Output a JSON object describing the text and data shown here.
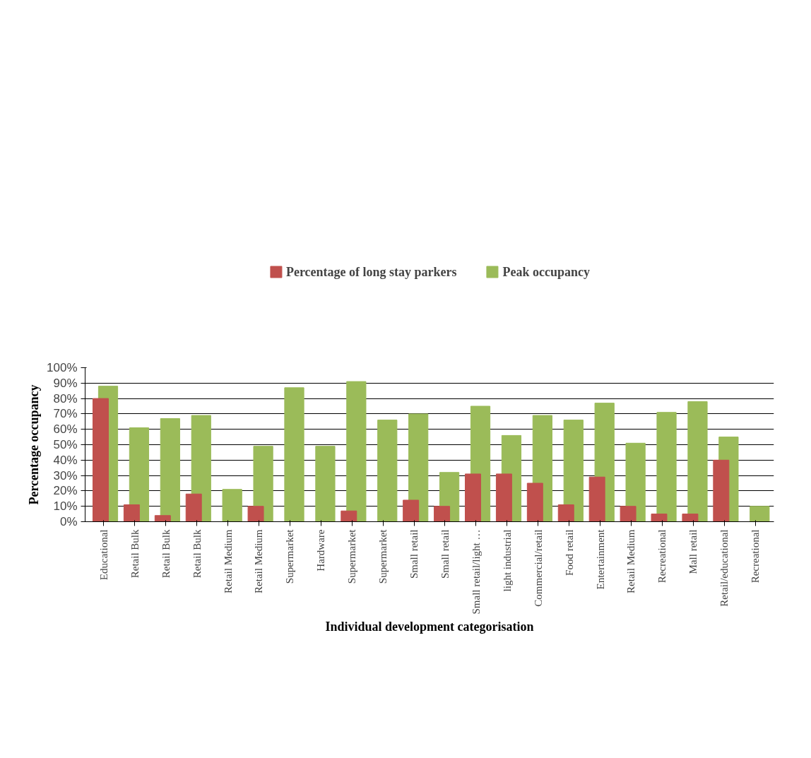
{
  "chart_data": {
    "type": "bar",
    "xlabel": "Individual development categorisation",
    "ylabel": "Percentage occupancy",
    "categories": [
      "Educational",
      "Retail Bulk",
      "Retail Bulk",
      "Retail Bulk",
      "Retail Medium",
      "Retail Medium",
      "Supermarket",
      "Hardware",
      "Supermarket",
      "Supermarket",
      "Small retail",
      "Small retail",
      "Small retail/light …",
      "light industrial",
      "Commercial/retail",
      "Food retail",
      "Entertainment",
      "Retail Medium",
      "Recreational",
      "Mall retail",
      "Retail/educational",
      "Recreational"
    ],
    "series": [
      {
        "name": "Peak occupancy",
        "color": "#9bbb59",
        "values": [
          88,
          61,
          67,
          69,
          21,
          49,
          87,
          49,
          91,
          66,
          70,
          32,
          75,
          56,
          69,
          66,
          77,
          51,
          71,
          78,
          55,
          10
        ]
      },
      {
        "name": "Percentage of long stay parkers",
        "color": "#c0504d",
        "values": [
          80,
          11,
          4,
          18,
          0,
          10,
          0,
          0,
          7,
          0,
          14,
          10,
          31,
          31,
          25,
          11,
          29,
          10,
          5,
          5,
          40,
          0
        ]
      }
    ],
    "ylim": [
      0,
      100
    ],
    "yticks": [
      {
        "value": 0,
        "label": "0%"
      },
      {
        "value": 10,
        "label": "10%"
      },
      {
        "value": 20,
        "label": "20%"
      },
      {
        "value": 30,
        "label": "30%"
      },
      {
        "value": 40,
        "label": "40%"
      },
      {
        "value": 50,
        "label": "50%"
      },
      {
        "value": 60,
        "label": "60%"
      },
      {
        "value": 70,
        "label": "70%"
      },
      {
        "value": 80,
        "label": "80%"
      },
      {
        "value": 90,
        "label": "90%"
      },
      {
        "value": 100,
        "label": "100%"
      }
    ],
    "grid": "y",
    "legend": "top"
  }
}
